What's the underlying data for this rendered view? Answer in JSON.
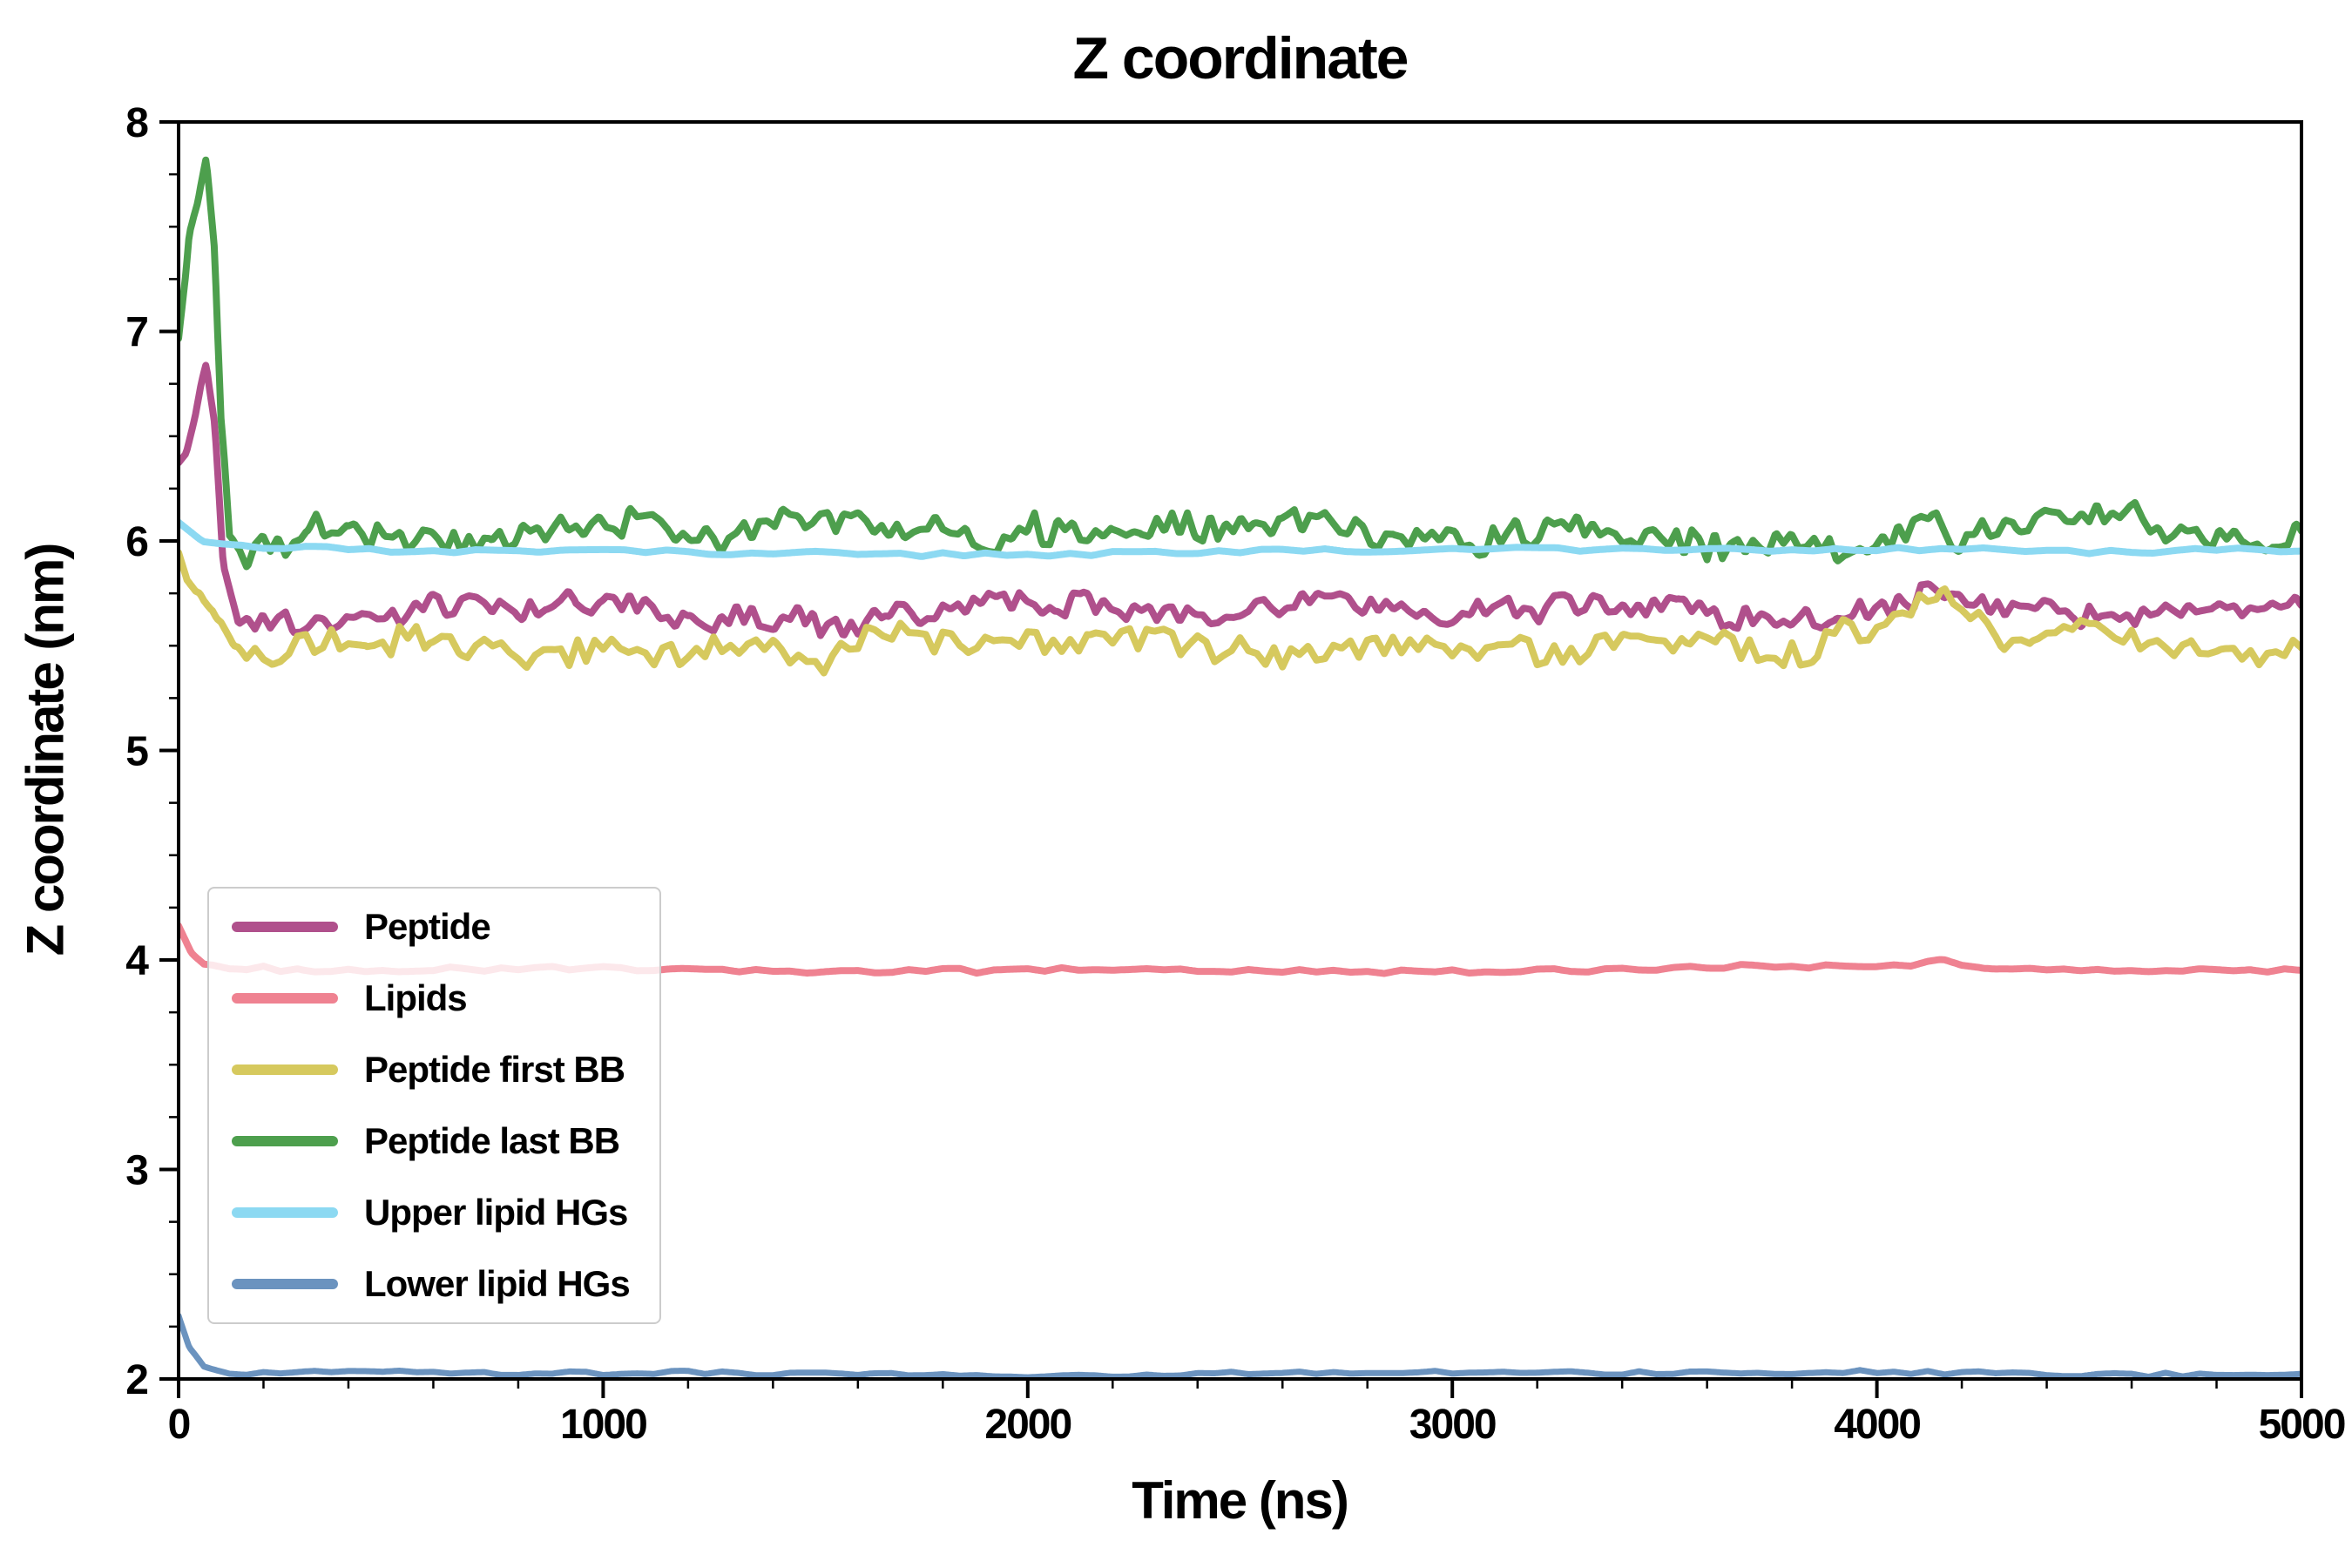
{
  "page": {
    "background": "#ffffff"
  },
  "chart_data": {
    "type": "line",
    "title": "Z coordinate",
    "xlabel": "Time (ns)",
    "ylabel": "Z coordinate (nm)",
    "xlim": [
      0,
      5000
    ],
    "ylim": [
      2,
      8
    ],
    "xticks": [
      0,
      1000,
      2000,
      3000,
      4000,
      5000
    ],
    "yticks": [
      2,
      3,
      4,
      5,
      6,
      7,
      8
    ],
    "x_minor_step": 200,
    "y_minor_step": 0.25,
    "grid": false,
    "legend_position": "center-left",
    "axis_color": "#000000",
    "series": [
      {
        "name": "Peptide",
        "color": "#b0508c",
        "line_width": 8,
        "seed": 11,
        "noise_amplitude": 0.07,
        "noise_scale_ns": 18,
        "anchors": [
          [
            0,
            6.35
          ],
          [
            40,
            6.6
          ],
          [
            65,
            6.8
          ],
          [
            85,
            6.5
          ],
          [
            105,
            5.85
          ],
          [
            140,
            5.62
          ],
          [
            300,
            5.6
          ],
          [
            600,
            5.66
          ],
          [
            900,
            5.7
          ],
          [
            1200,
            5.63
          ],
          [
            1500,
            5.6
          ],
          [
            1800,
            5.66
          ],
          [
            2100,
            5.7
          ],
          [
            2400,
            5.64
          ],
          [
            2700,
            5.72
          ],
          [
            3000,
            5.63
          ],
          [
            3300,
            5.68
          ],
          [
            3600,
            5.65
          ],
          [
            3900,
            5.62
          ],
          [
            4150,
            5.78
          ],
          [
            4300,
            5.65
          ],
          [
            4600,
            5.68
          ],
          [
            4800,
            5.63
          ],
          [
            5000,
            5.72
          ]
        ]
      },
      {
        "name": "Lipids",
        "color": "#ef8291",
        "line_width": 8,
        "seed": 22,
        "noise_amplitude": 0.015,
        "noise_scale_ns": 40,
        "anchors": [
          [
            0,
            4.18
          ],
          [
            30,
            4.05
          ],
          [
            60,
            3.99
          ],
          [
            120,
            3.96
          ],
          [
            500,
            3.95
          ],
          [
            1000,
            3.96
          ],
          [
            1500,
            3.94
          ],
          [
            2000,
            3.95
          ],
          [
            2500,
            3.95
          ],
          [
            3000,
            3.94
          ],
          [
            3500,
            3.96
          ],
          [
            4000,
            3.97
          ],
          [
            4150,
            3.99
          ],
          [
            4250,
            3.96
          ],
          [
            4600,
            3.95
          ],
          [
            5000,
            3.95
          ]
        ]
      },
      {
        "name": "Peptide first BB",
        "color": "#d6c95e",
        "line_width": 8,
        "seed": 33,
        "noise_amplitude": 0.085,
        "noise_scale_ns": 20,
        "anchors": [
          [
            0,
            5.92
          ],
          [
            50,
            5.8
          ],
          [
            90,
            5.6
          ],
          [
            130,
            5.48
          ],
          [
            300,
            5.52
          ],
          [
            600,
            5.5
          ],
          [
            900,
            5.47
          ],
          [
            1200,
            5.5
          ],
          [
            1500,
            5.42
          ],
          [
            1700,
            5.55
          ],
          [
            2000,
            5.5
          ],
          [
            2300,
            5.52
          ],
          [
            2600,
            5.48
          ],
          [
            2900,
            5.55
          ],
          [
            3100,
            5.45
          ],
          [
            3400,
            5.52
          ],
          [
            3700,
            5.5
          ],
          [
            4000,
            5.52
          ],
          [
            4150,
            5.72
          ],
          [
            4300,
            5.52
          ],
          [
            4500,
            5.58
          ],
          [
            4700,
            5.5
          ],
          [
            4900,
            5.45
          ],
          [
            5000,
            5.55
          ]
        ]
      },
      {
        "name": "Peptide last BB",
        "color": "#4d9f4d",
        "line_width": 8,
        "seed": 44,
        "noise_amplitude": 0.09,
        "noise_scale_ns": 18,
        "anchors": [
          [
            0,
            6.9
          ],
          [
            25,
            7.5
          ],
          [
            45,
            7.65
          ],
          [
            65,
            7.88
          ],
          [
            85,
            7.45
          ],
          [
            100,
            6.6
          ],
          [
            120,
            6.0
          ],
          [
            160,
            5.92
          ],
          [
            300,
            6.05
          ],
          [
            600,
            6.0
          ],
          [
            900,
            6.08
          ],
          [
            1200,
            6.02
          ],
          [
            1500,
            6.12
          ],
          [
            1800,
            6.0
          ],
          [
            2100,
            6.05
          ],
          [
            2400,
            6.08
          ],
          [
            2700,
            6.1
          ],
          [
            3000,
            6.0
          ],
          [
            3300,
            6.05
          ],
          [
            3600,
            6.02
          ],
          [
            3900,
            6.0
          ],
          [
            4200,
            6.05
          ],
          [
            4500,
            6.12
          ],
          [
            4800,
            6.0
          ],
          [
            5000,
            6.02
          ]
        ]
      },
      {
        "name": "Upper lipid HGs",
        "color": "#8cd9f2",
        "line_width": 8,
        "seed": 55,
        "noise_amplitude": 0.012,
        "noise_scale_ns": 50,
        "anchors": [
          [
            0,
            6.08
          ],
          [
            60,
            6.0
          ],
          [
            150,
            5.97
          ],
          [
            500,
            5.95
          ],
          [
            1000,
            5.95
          ],
          [
            1500,
            5.94
          ],
          [
            2000,
            5.94
          ],
          [
            2500,
            5.95
          ],
          [
            3000,
            5.96
          ],
          [
            3500,
            5.95
          ],
          [
            4000,
            5.96
          ],
          [
            4500,
            5.95
          ],
          [
            5000,
            5.96
          ]
        ]
      },
      {
        "name": "Lower lipid HGs",
        "color": "#6b93bf",
        "line_width": 7,
        "seed": 66,
        "noise_amplitude": 0.012,
        "noise_scale_ns": 40,
        "anchors": [
          [
            0,
            2.3
          ],
          [
            25,
            2.15
          ],
          [
            60,
            2.06
          ],
          [
            120,
            2.03
          ],
          [
            500,
            2.03
          ],
          [
            1000,
            2.03
          ],
          [
            2000,
            2.02
          ],
          [
            3000,
            2.03
          ],
          [
            4000,
            2.03
          ],
          [
            5000,
            2.02
          ]
        ]
      }
    ]
  }
}
